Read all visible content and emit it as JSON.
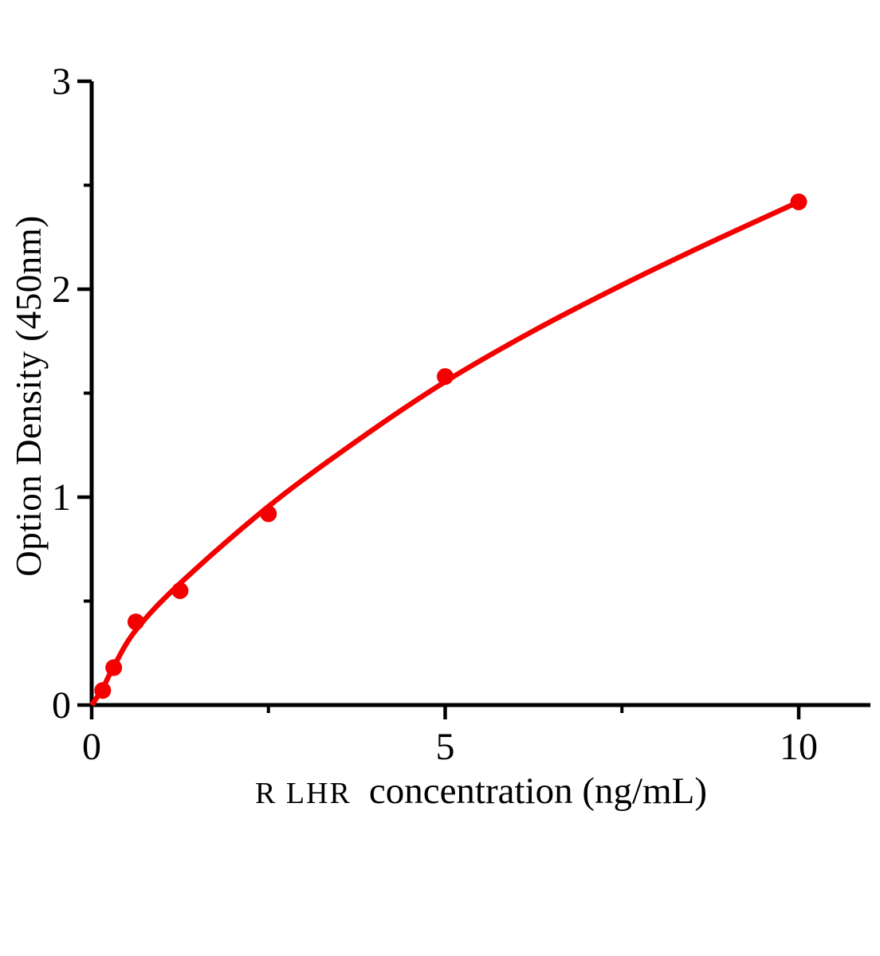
{
  "figure": {
    "background": "#ffffff"
  },
  "chart_data": {
    "type": "scatter",
    "title": "",
    "xlabel": "R LHR concentration（ng/mL）",
    "xlabel_prefix": "R LHR",
    "xlabel_rest": "concentration（ng/mL）",
    "ylabel": "Option Density（450nm）",
    "x": [
      0.156,
      0.312,
      0.625,
      1.25,
      2.5,
      5,
      10
    ],
    "y": [
      0.07,
      0.18,
      0.4,
      0.55,
      0.92,
      1.58,
      2.42
    ],
    "xlim": [
      0,
      11
    ],
    "ylim": [
      0,
      3
    ],
    "x_ticks": [
      0,
      5,
      10
    ],
    "x_minor_ticks": [
      2.5,
      7.5
    ],
    "y_ticks": [
      0,
      1,
      2,
      3
    ],
    "y_minor_ticks": [
      0.5,
      1.5,
      2.5
    ],
    "grid": false,
    "legend": "none",
    "marker_color": "#f40000",
    "line_color": "#f40000",
    "axis_color": "#000000",
    "fit_curve": [
      [
        0,
        0
      ],
      [
        0.156,
        0.08
      ],
      [
        0.312,
        0.185
      ],
      [
        0.625,
        0.36
      ],
      [
        1.25,
        0.585
      ],
      [
        2.5,
        0.955
      ],
      [
        3.75,
        1.27
      ],
      [
        5,
        1.555
      ],
      [
        6.25,
        1.8
      ],
      [
        7.5,
        2.02
      ],
      [
        8.75,
        2.225
      ],
      [
        10,
        2.42
      ]
    ]
  }
}
